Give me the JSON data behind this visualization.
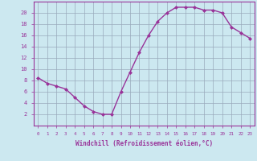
{
  "x": [
    0,
    1,
    2,
    3,
    4,
    5,
    6,
    7,
    8,
    9,
    10,
    11,
    12,
    13,
    14,
    15,
    16,
    17,
    18,
    19,
    20,
    21,
    22,
    23
  ],
  "y": [
    8.5,
    7.5,
    7.0,
    6.5,
    5.0,
    3.5,
    2.5,
    2.0,
    2.0,
    6.0,
    9.5,
    13.0,
    16.0,
    18.5,
    20.0,
    21.0,
    21.0,
    21.0,
    20.5,
    20.5,
    20.0,
    17.5,
    16.5,
    15.5
  ],
  "line_color": "#993399",
  "marker_color": "#993399",
  "bg_color": "#cce8f0",
  "grid_color": "#99aabb",
  "axis_color": "#993399",
  "xlabel": "Windchill (Refroidissement éolien,°C)",
  "ylim": [
    0,
    22
  ],
  "xlim": [
    -0.5,
    23.5
  ],
  "yticks": [
    2,
    4,
    6,
    8,
    10,
    12,
    14,
    16,
    18,
    20
  ],
  "xticks": [
    0,
    1,
    2,
    3,
    4,
    5,
    6,
    7,
    8,
    9,
    10,
    11,
    12,
    13,
    14,
    15,
    16,
    17,
    18,
    19,
    20,
    21,
    22,
    23
  ]
}
